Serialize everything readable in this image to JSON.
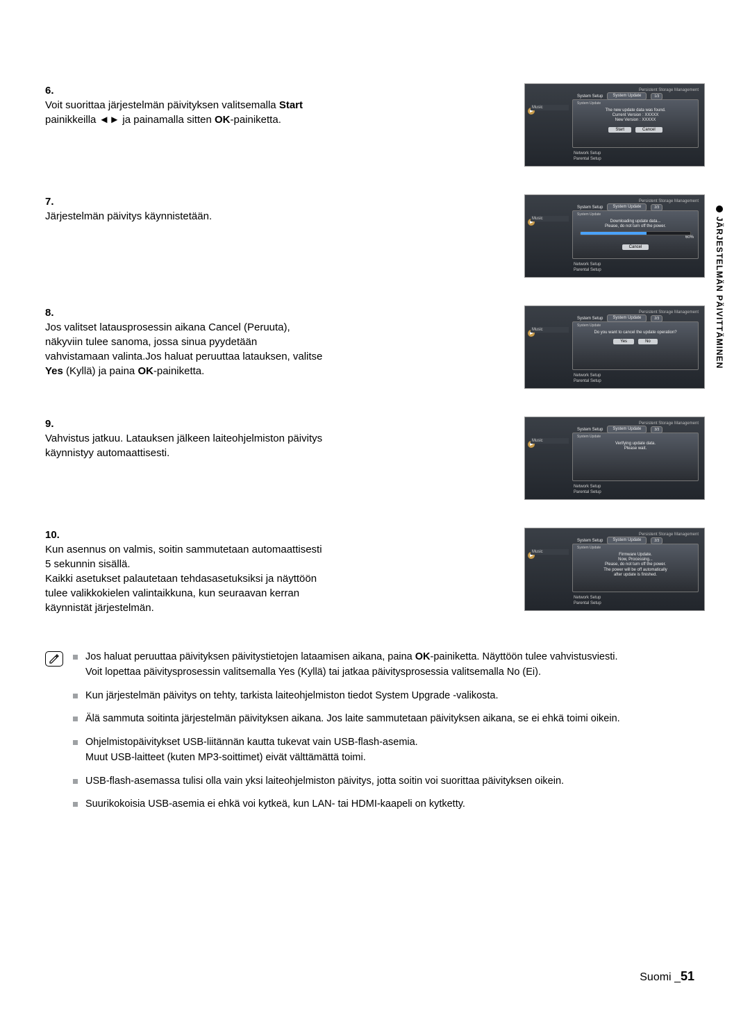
{
  "sideLabel": "JÄRJESTELMÄN PÄIVITTÄMINEN",
  "steps": [
    {
      "num": "6.",
      "text_parts": [
        "Voit suorittaa järjestelmän päivityksen valitsemalla ",
        "Start",
        " painikkeilla ◄► ja painamalla sitten ",
        "OK",
        "-painiketta."
      ],
      "thumb": {
        "topRight": "Persistent Storage Management",
        "header": "System Update",
        "headerNum": "1/3",
        "submenu": "System Setup",
        "submenu2": "System Update",
        "lines": [
          "The new update data was found.",
          "Current Version : XXXXX",
          "New Version : XXXXX"
        ],
        "buttons": [
          "Start",
          "Cancel"
        ],
        "below": [
          "Network Setup",
          "Parental Setup"
        ],
        "sideIcon": "Music"
      }
    },
    {
      "num": "7.",
      "text_parts": [
        "Järjestelmän päivitys käynnistetään."
      ],
      "thumb": {
        "topRight": "Persistent Storage Management",
        "header": "System Update",
        "headerNum": "2/3",
        "submenu": "System Setup",
        "submenu2": "System Update",
        "lines": [
          "Downloading update data...",
          "Please, do not turn off the power."
        ],
        "progress": 60,
        "progress_label": "60%",
        "buttons": [
          "Cancel"
        ],
        "below": [
          "Network Setup",
          "Parental Setup"
        ],
        "sideIcon": "Music"
      }
    },
    {
      "num": "8.",
      "text_parts": [
        "Jos valitset latausprosessin aikana Cancel (Peruuta), näkyviin tulee sanoma, jossa sinua pyydetään vahvistamaan valinta.Jos haluat peruuttaa latauksen, valitse ",
        "Yes",
        " (Kyllä) ja paina ",
        "OK",
        "-painiketta."
      ],
      "thumb": {
        "topRight": "Persistent Storage Management",
        "header": "System Update",
        "headerNum": "2/3",
        "submenu": "System Setup",
        "submenu2": "System Update",
        "lines": [
          "Do you want to cancel the update operation?"
        ],
        "buttons": [
          "Yes",
          "No"
        ],
        "below": [
          "Network Setup",
          "Parental Setup"
        ],
        "sideIcon": "Music"
      }
    },
    {
      "num": "9.",
      "text_parts": [
        "Vahvistus jatkuu. Latauksen jälkeen laiteohjelmiston päivitys käynnistyy automaattisesti."
      ],
      "thumb": {
        "topRight": "Persistent Storage Management",
        "header": "System Update",
        "headerNum": "3/3",
        "submenu": "System Setup",
        "submenu2": "System Update",
        "lines": [
          "Verifying update data.",
          "Please wait."
        ],
        "below": [
          "Network Setup",
          "Parental Setup"
        ],
        "sideIcon": "Music"
      }
    },
    {
      "num": "10.",
      "text_parts": [
        "Kun asennus on valmis, soitin sammutetaan automaattisesti 5 sekunnin sisällä.\nKaikki asetukset palautetaan tehdasasetuksiksi ja näyttöön tulee valikkokielen valintaikkuna, kun seuraavan kerran käynnistät järjestelmän."
      ],
      "thumb": {
        "topRight": "Persistent Storage Management",
        "header": "System Update",
        "headerNum": "2/3",
        "submenu": "System Setup",
        "submenu2": "System Update",
        "lines": [
          "Firmware Update.",
          "Now, Processing...",
          "Please, do not turn off the power.",
          "The power will be off automatically",
          "after update is finished."
        ],
        "below": [
          "Network Setup",
          "Parental Setup"
        ],
        "sideIcon": "Music"
      }
    }
  ],
  "notes": [
    {
      "segments": [
        "Jos haluat peruuttaa päivityksen päivitystietojen lataamisen aikana, paina ",
        "OK",
        "-painiketta. Näyttöön tulee vahvistusviesti.\nVoit lopettaa päivitysprosessin valitsemalla Yes (Kyllä) tai jatkaa päivitysprosessia valitsemalla No (Ei)."
      ]
    },
    {
      "segments": [
        "Kun järjestelmän päivitys on tehty, tarkista laiteohjelmiston tiedot System Upgrade -valikosta."
      ]
    },
    {
      "segments": [
        "Älä sammuta soitinta järjestelmän päivityksen aikana. Jos laite sammutetaan päivityksen aikana, se ei ehkä toimi oikein."
      ]
    },
    {
      "segments": [
        "Ohjelmistopäivitykset USB-liitännän kautta tukevat vain USB-flash-asemia.\nMuut USB-laitteet (kuten MP3-soittimet) eivät välttämättä toimi."
      ]
    },
    {
      "segments": [
        "USB-flash-asemassa tulisi olla vain yksi laiteohjelmiston päivitys, jotta soitin voi suorittaa päivityksen oikein."
      ]
    },
    {
      "segments": [
        "Suurikokoisia USB-asemia ei ehkä voi kytkeä, kun LAN- tai HDMI-kaapeli on kytketty."
      ]
    }
  ],
  "footer": {
    "lang": "Suomi",
    "sep": "_",
    "page": "51"
  },
  "colors": {
    "bullet": "#9ea1a4",
    "thumb_bg_top": "#3a3f46",
    "thumb_bg_bottom": "#22262c",
    "progress_fill": "#4aa3ff"
  }
}
